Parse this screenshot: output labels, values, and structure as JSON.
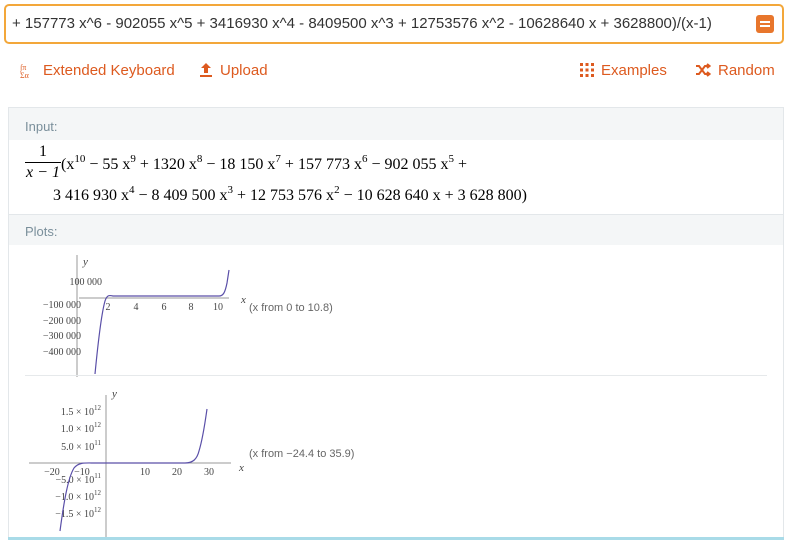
{
  "query": {
    "value": "+ 157773 x^6 - 902055 x^5 + 3416930 x^4 - 8409500 x^3 + 12753576 x^2 - 10628640 x + 3628800)/(x-1)"
  },
  "toolbar": {
    "extended_keyboard": "Extended Keyboard",
    "upload": "Upload",
    "examples": "Examples",
    "random": "Random"
  },
  "input_pod": {
    "title": "Input:",
    "frac_num": "1",
    "frac_den": "x − 1",
    "line1": {
      "t1": "(x",
      "e1": "10",
      "t2": " − 55 x",
      "e2": "9",
      "t3": " + 1320 x",
      "e3": "8",
      "t4": " − 18 150 x",
      "e4": "7",
      "t5": " + 157 773 x",
      "e5": "6",
      "t6": " − 902 055 x",
      "e6": "5",
      "t7": " +"
    },
    "line2": {
      "t1": "3 416 930 x",
      "e1": "4",
      "t2": " − 8 409 500 x",
      "e2": "3",
      "t3": " + 12 753 576 x",
      "e3": "2",
      "t4": " − 10 628 640 x + 3 628 800)"
    }
  },
  "plots_pod": {
    "title": "Plots:",
    "plot1": {
      "axis_x": "x",
      "axis_y": "y",
      "y_ticks": [
        "100 000",
        "−100 000",
        "−200 000",
        "−300 000",
        "−400 000"
      ],
      "x_ticks": [
        "2",
        "4",
        "6",
        "8",
        "10"
      ],
      "range_note": "(x from 0 to 10.8)",
      "line_color": "#5a4fa8"
    },
    "plot2": {
      "axis_x": "x",
      "axis_y": "y",
      "y_ticks": [
        {
          "m": "1.5 × 10",
          "e": "12"
        },
        {
          "m": "1.0 × 10",
          "e": "12"
        },
        {
          "m": "5.0 × 10",
          "e": "11"
        },
        {
          "m": "−5.0 × 10",
          "e": "11"
        },
        {
          "m": "−1.0 × 10",
          "e": "12"
        },
        {
          "m": "−1.5 × 10",
          "e": "12"
        }
      ],
      "x_ticks": [
        "−20",
        "−10",
        "10",
        "20",
        "30"
      ],
      "range_note": "(x from −24.4 to 35.9)",
      "line_color": "#5a4fa8"
    }
  }
}
